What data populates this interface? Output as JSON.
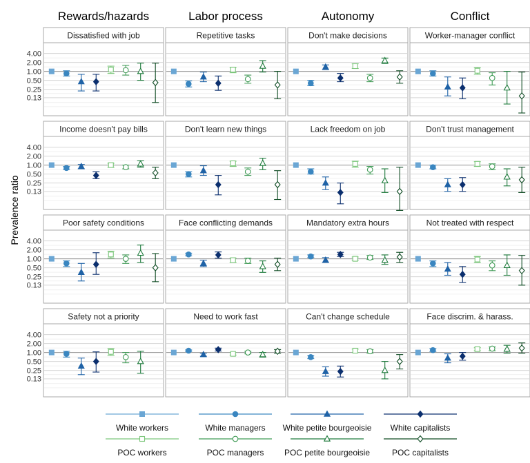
{
  "chart_data": {
    "type": "scatter",
    "subtype": "faceted point-range (prevalence ratios with confidence intervals)",
    "ylabel": "Prevalence ratio",
    "y_scale": "log",
    "ylim": [
      0.04,
      6.0
    ],
    "y_ticks": [
      0.13,
      0.25,
      0.5,
      1.0,
      2.0,
      4.0
    ],
    "y_tick_labels": [
      "0.13",
      "0.25",
      "0.50",
      "1.00",
      "2.00",
      "4.00"
    ],
    "reference_line": 1.0,
    "grid": true,
    "legend_position": "bottom",
    "column_titles": [
      "Rewards/hazards",
      "Labor process",
      "Autonomy",
      "Conflict"
    ],
    "groups": [
      {
        "name": "White workers",
        "color": "#6AA6D4",
        "marker": "square",
        "filled": true
      },
      {
        "name": "White managers",
        "color": "#3A86C0",
        "marker": "circle",
        "filled": true
      },
      {
        "name": "White petite bourgeoisie",
        "color": "#1F62A6",
        "marker": "triangle",
        "filled": true
      },
      {
        "name": "White capitalists",
        "color": "#0B2F6E",
        "marker": "diamond",
        "filled": true
      },
      {
        "name": "POC workers",
        "color": "#7BC67A",
        "marker": "square",
        "filled": false
      },
      {
        "name": "POC managers",
        "color": "#3F9A55",
        "marker": "circle",
        "filled": false
      },
      {
        "name": "POC petite bourgeoisie",
        "color": "#1E7A3C",
        "marker": "triangle",
        "filled": false
      },
      {
        "name": "POC capitalists",
        "color": "#0D4A22",
        "marker": "diamond",
        "filled": false
      }
    ],
    "panels": [
      {
        "title": "Dissatisfied with job",
        "points": [
          {
            "est": 1.0,
            "lo": 1.0,
            "hi": 1.0
          },
          {
            "est": 0.85,
            "lo": 0.7,
            "hi": 1.05
          },
          {
            "est": 0.45,
            "lo": 0.22,
            "hi": 0.8
          },
          {
            "est": 0.45,
            "lo": 0.22,
            "hi": 0.8
          },
          {
            "est": 1.15,
            "lo": 0.85,
            "hi": 1.5
          },
          {
            "est": 1.1,
            "lo": 0.75,
            "hi": 1.6
          },
          {
            "est": 1.0,
            "lo": 0.5,
            "hi": 1.9
          },
          {
            "est": 0.42,
            "lo": 0.09,
            "hi": 1.9
          }
        ]
      },
      {
        "title": "Repetitive tasks",
        "points": [
          {
            "est": 1.0,
            "lo": 1.0,
            "hi": 1.0
          },
          {
            "est": 0.38,
            "lo": 0.3,
            "hi": 0.48
          },
          {
            "est": 0.65,
            "lo": 0.45,
            "hi": 0.95
          },
          {
            "est": 0.4,
            "lo": 0.23,
            "hi": 0.7
          },
          {
            "est": 1.15,
            "lo": 0.9,
            "hi": 1.35
          },
          {
            "est": 0.55,
            "lo": 0.4,
            "hi": 0.75
          },
          {
            "est": 1.5,
            "lo": 0.95,
            "hi": 2.3
          },
          {
            "est": 0.35,
            "lo": 0.12,
            "hi": 1.0
          }
        ]
      },
      {
        "title": "Don't make decisions",
        "points": [
          {
            "est": 1.0,
            "lo": 1.0,
            "hi": 1.0
          },
          {
            "est": 0.4,
            "lo": 0.33,
            "hi": 0.5
          },
          {
            "est": 1.4,
            "lo": 1.15,
            "hi": 1.65
          },
          {
            "est": 0.6,
            "lo": 0.45,
            "hi": 0.85
          },
          {
            "est": 1.5,
            "lo": 1.25,
            "hi": 1.8
          },
          {
            "est": 0.6,
            "lo": 0.45,
            "hi": 0.8
          },
          {
            "est": 2.3,
            "lo": 1.85,
            "hi": 2.8
          },
          {
            "est": 0.65,
            "lo": 0.4,
            "hi": 1.05
          }
        ]
      },
      {
        "title": "Worker-manager conflict",
        "points": [
          {
            "est": 1.0,
            "lo": 1.0,
            "hi": 1.0
          },
          {
            "est": 0.85,
            "lo": 0.7,
            "hi": 1.05
          },
          {
            "est": 0.3,
            "lo": 0.15,
            "hi": 0.65
          },
          {
            "est": 0.28,
            "lo": 0.12,
            "hi": 0.6
          },
          {
            "est": 1.05,
            "lo": 0.8,
            "hi": 1.35
          },
          {
            "est": 0.6,
            "lo": 0.35,
            "hi": 0.9
          },
          {
            "est": 0.28,
            "lo": 0.08,
            "hi": 1.0
          },
          {
            "est": 0.15,
            "lo": 0.04,
            "hi": 0.95
          }
        ]
      },
      {
        "title": "Income doesn't pay bills",
        "points": [
          {
            "est": 1.0,
            "lo": 1.0,
            "hi": 1.0
          },
          {
            "est": 0.8,
            "lo": 0.7,
            "hi": 0.9
          },
          {
            "est": 0.9,
            "lo": 0.75,
            "hi": 1.05
          },
          {
            "est": 0.45,
            "lo": 0.35,
            "hi": 0.6
          },
          {
            "est": 1.0,
            "lo": 0.85,
            "hi": 1.15
          },
          {
            "est": 0.85,
            "lo": 0.75,
            "hi": 1.0
          },
          {
            "est": 1.1,
            "lo": 0.85,
            "hi": 1.4
          },
          {
            "est": 0.55,
            "lo": 0.35,
            "hi": 0.85
          }
        ]
      },
      {
        "title": "Don't learn new things",
        "points": [
          {
            "est": 1.0,
            "lo": 1.0,
            "hi": 1.0
          },
          {
            "est": 0.5,
            "lo": 0.4,
            "hi": 0.6
          },
          {
            "est": 0.65,
            "lo": 0.45,
            "hi": 0.95
          },
          {
            "est": 0.22,
            "lo": 0.1,
            "hi": 0.45
          },
          {
            "est": 1.15,
            "lo": 0.9,
            "hi": 1.35
          },
          {
            "est": 0.6,
            "lo": 0.45,
            "hi": 0.8
          },
          {
            "est": 1.15,
            "lo": 0.7,
            "hi": 1.7
          },
          {
            "est": 0.22,
            "lo": 0.07,
            "hi": 0.65
          }
        ]
      },
      {
        "title": "Lack freedom on job",
        "points": [
          {
            "est": 1.0,
            "lo": 1.0,
            "hi": 1.0
          },
          {
            "est": 0.6,
            "lo": 0.5,
            "hi": 0.75
          },
          {
            "est": 0.25,
            "lo": 0.15,
            "hi": 0.4
          },
          {
            "est": 0.12,
            "lo": 0.05,
            "hi": 0.25
          },
          {
            "est": 1.1,
            "lo": 0.85,
            "hi": 1.35
          },
          {
            "est": 0.7,
            "lo": 0.5,
            "hi": 0.9
          },
          {
            "est": 0.3,
            "lo": 0.12,
            "hi": 0.75
          },
          {
            "est": 0.13,
            "lo": 0.03,
            "hi": 0.85
          }
        ]
      },
      {
        "title": "Don't trust management",
        "points": [
          {
            "est": 1.0,
            "lo": 1.0,
            "hi": 1.0
          },
          {
            "est": 0.85,
            "lo": 0.75,
            "hi": 1.0
          },
          {
            "est": 0.22,
            "lo": 0.13,
            "hi": 0.35
          },
          {
            "est": 0.22,
            "lo": 0.13,
            "hi": 0.38
          },
          {
            "est": 1.1,
            "lo": 0.9,
            "hi": 1.3
          },
          {
            "est": 0.9,
            "lo": 0.7,
            "hi": 1.1
          },
          {
            "est": 0.4,
            "lo": 0.2,
            "hi": 0.75
          },
          {
            "est": 0.32,
            "lo": 0.12,
            "hi": 0.85
          }
        ]
      },
      {
        "title": "Poor safety conditions",
        "points": [
          {
            "est": 1.0,
            "lo": 1.0,
            "hi": 1.0
          },
          {
            "est": 0.7,
            "lo": 0.55,
            "hi": 0.85
          },
          {
            "est": 0.35,
            "lo": 0.18,
            "hi": 0.7
          },
          {
            "est": 0.65,
            "lo": 0.3,
            "hi": 1.6
          },
          {
            "est": 1.4,
            "lo": 1.05,
            "hi": 1.8
          },
          {
            "est": 1.0,
            "lo": 0.7,
            "hi": 1.35
          },
          {
            "est": 1.55,
            "lo": 0.75,
            "hi": 2.9
          },
          {
            "est": 0.5,
            "lo": 0.17,
            "hi": 1.5
          }
        ]
      },
      {
        "title": "Face conflicting demands",
        "points": [
          {
            "est": 1.0,
            "lo": 1.0,
            "hi": 1.0
          },
          {
            "est": 1.4,
            "lo": 1.25,
            "hi": 1.55
          },
          {
            "est": 0.7,
            "lo": 0.55,
            "hi": 0.9
          },
          {
            "est": 1.35,
            "lo": 1.05,
            "hi": 1.7
          },
          {
            "est": 0.9,
            "lo": 0.75,
            "hi": 1.05
          },
          {
            "est": 0.85,
            "lo": 0.7,
            "hi": 1.05
          },
          {
            "est": 0.55,
            "lo": 0.35,
            "hi": 0.85
          },
          {
            "est": 0.65,
            "lo": 0.4,
            "hi": 1.05
          }
        ]
      },
      {
        "title": "Mandatory extra hours",
        "points": [
          {
            "est": 1.0,
            "lo": 1.0,
            "hi": 1.0
          },
          {
            "est": 1.2,
            "lo": 1.1,
            "hi": 1.35
          },
          {
            "est": 0.9,
            "lo": 0.75,
            "hi": 1.1
          },
          {
            "est": 1.4,
            "lo": 1.2,
            "hi": 1.65
          },
          {
            "est": 1.0,
            "lo": 0.9,
            "hi": 1.15
          },
          {
            "est": 1.1,
            "lo": 0.95,
            "hi": 1.3
          },
          {
            "est": 0.9,
            "lo": 0.65,
            "hi": 1.35
          },
          {
            "est": 1.15,
            "lo": 0.75,
            "hi": 1.65
          }
        ]
      },
      {
        "title": "Not treated with respect",
        "points": [
          {
            "est": 1.0,
            "lo": 1.0,
            "hi": 1.0
          },
          {
            "est": 0.7,
            "lo": 0.55,
            "hi": 0.85
          },
          {
            "est": 0.45,
            "lo": 0.28,
            "hi": 0.75
          },
          {
            "est": 0.3,
            "lo": 0.16,
            "hi": 0.55
          },
          {
            "est": 0.95,
            "lo": 0.75,
            "hi": 1.2
          },
          {
            "est": 0.6,
            "lo": 0.4,
            "hi": 0.85
          },
          {
            "est": 0.6,
            "lo": 0.28,
            "hi": 1.35
          },
          {
            "est": 0.4,
            "lo": 0.13,
            "hi": 1.3
          }
        ]
      },
      {
        "title": "Safety not a priority",
        "points": [
          {
            "est": 1.0,
            "lo": 1.0,
            "hi": 1.0
          },
          {
            "est": 0.9,
            "lo": 0.7,
            "hi": 1.1
          },
          {
            "est": 0.35,
            "lo": 0.18,
            "hi": 0.65
          },
          {
            "est": 0.5,
            "lo": 0.22,
            "hi": 1.05
          },
          {
            "est": 1.05,
            "lo": 0.8,
            "hi": 1.35
          },
          {
            "est": 0.7,
            "lo": 0.45,
            "hi": 1.0
          },
          {
            "est": 0.5,
            "lo": 0.2,
            "hi": 1.1
          },
          {
            "est": null,
            "lo": null,
            "hi": null
          }
        ]
      },
      {
        "title": "Need to work fast",
        "points": [
          {
            "est": 1.0,
            "lo": 1.0,
            "hi": 1.0
          },
          {
            "est": 1.15,
            "lo": 1.08,
            "hi": 1.22
          },
          {
            "est": 0.85,
            "lo": 0.75,
            "hi": 0.95
          },
          {
            "est": 1.25,
            "lo": 1.12,
            "hi": 1.4
          },
          {
            "est": 0.9,
            "lo": 0.82,
            "hi": 1.0
          },
          {
            "est": 1.0,
            "lo": 0.9,
            "hi": 1.1
          },
          {
            "est": 0.85,
            "lo": 0.7,
            "hi": 1.0
          },
          {
            "est": 1.1,
            "lo": 0.95,
            "hi": 1.25
          }
        ]
      },
      {
        "title": "Can't change schedule",
        "points": [
          {
            "est": 1.0,
            "lo": 1.0,
            "hi": 1.0
          },
          {
            "est": 0.7,
            "lo": 0.62,
            "hi": 0.8
          },
          {
            "est": 0.23,
            "lo": 0.16,
            "hi": 0.33
          },
          {
            "est": 0.23,
            "lo": 0.15,
            "hi": 0.35
          },
          {
            "est": 1.15,
            "lo": 1.0,
            "hi": 1.3
          },
          {
            "est": 1.1,
            "lo": 0.95,
            "hi": 1.25
          },
          {
            "est": 0.25,
            "lo": 0.13,
            "hi": 0.5
          },
          {
            "est": 0.5,
            "lo": 0.28,
            "hi": 0.85
          }
        ]
      },
      {
        "title": "Face discrim. & harass.",
        "points": [
          {
            "est": 1.0,
            "lo": 1.0,
            "hi": 1.0
          },
          {
            "est": 1.2,
            "lo": 1.08,
            "hi": 1.35
          },
          {
            "est": 0.65,
            "lo": 0.45,
            "hi": 0.9
          },
          {
            "est": 0.75,
            "lo": 0.55,
            "hi": 1.0
          },
          {
            "est": 1.3,
            "lo": 1.15,
            "hi": 1.45
          },
          {
            "est": 1.35,
            "lo": 1.15,
            "hi": 1.55
          },
          {
            "est": 1.3,
            "lo": 0.95,
            "hi": 1.75
          },
          {
            "est": 1.4,
            "lo": 0.95,
            "hi": 2.1
          }
        ]
      }
    ]
  }
}
